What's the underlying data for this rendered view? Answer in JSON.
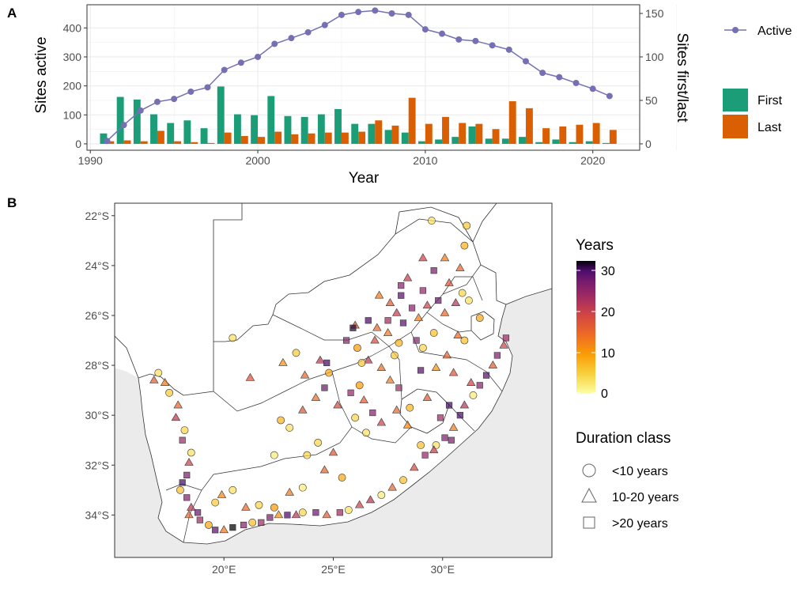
{
  "figure": {
    "panel_a_label": "A",
    "panel_b_label": "B"
  },
  "colors": {
    "active": "#7570B3",
    "first": "#1B9E77",
    "last": "#D95F02",
    "grid": "#EBEBEB",
    "border": "#333333",
    "land_fill": "#FFFFFF"
  },
  "chart_data": [
    {
      "type": "bar",
      "title": "",
      "xlabel": "Year",
      "ylabel": "Sites active",
      "ylabel_right": "Sites first/last",
      "xlim": [
        1989.8,
        2022.8
      ],
      "ylim": [
        -22,
        480
      ],
      "ylim_right": [
        -7.33,
        160
      ],
      "x_ticks": [
        1990,
        2000,
        2010,
        2020
      ],
      "x_tick_labels": [
        "1990",
        "2000",
        "2010",
        "2020"
      ],
      "y_ticks": [
        0,
        100,
        200,
        300,
        400
      ],
      "y_tick_labels": [
        "0",
        "100",
        "200",
        "300",
        "400"
      ],
      "y_ticks_right": [
        0,
        50,
        100,
        150
      ],
      "y_tick_labels_right": [
        "0",
        "50",
        "100",
        "150"
      ],
      "years": [
        1991,
        1992,
        1993,
        1994,
        1995,
        1996,
        1997,
        1998,
        1999,
        2000,
        2001,
        2002,
        2003,
        2004,
        2005,
        2006,
        2007,
        2008,
        2009,
        2010,
        2011,
        2012,
        2013,
        2014,
        2015,
        2016,
        2017,
        2018,
        2019,
        2020,
        2021
      ],
      "series": [
        {
          "name": "Active",
          "kind": "line",
          "axis": "left",
          "values": [
            10,
            65,
            115,
            145,
            155,
            180,
            195,
            255,
            280,
            300,
            345,
            365,
            385,
            410,
            445,
            455,
            460,
            450,
            445,
            395,
            380,
            360,
            355,
            340,
            325,
            285,
            245,
            230,
            210,
            190,
            165
          ]
        },
        {
          "name": "First",
          "kind": "bar",
          "axis": "right",
          "values": [
            12,
            54,
            51,
            34,
            24,
            27,
            18,
            66,
            34,
            33,
            55,
            32,
            31,
            34,
            40,
            23,
            23,
            16,
            13,
            3,
            5,
            8,
            20,
            6,
            6,
            8,
            2,
            5,
            2,
            3,
            1
          ]
        },
        {
          "name": "Last",
          "kind": "bar",
          "axis": "right",
          "values": [
            3,
            4,
            3,
            15,
            3,
            2,
            1,
            13,
            9,
            8,
            14,
            11,
            12,
            13,
            13,
            14,
            27,
            21,
            53,
            23,
            31,
            24,
            23,
            17,
            49,
            41,
            18,
            20,
            22,
            24,
            16
          ]
        }
      ],
      "legend": {
        "line_label": "Active",
        "bar_labels": [
          "First",
          "Last"
        ],
        "position": "right"
      }
    },
    {
      "type": "scatter",
      "title": "",
      "xlabel": "",
      "ylabel": "",
      "xlim": [
        15.0,
        35.0
      ],
      "ylim": [
        -35.7,
        -21.5
      ],
      "x_ticks": [
        20,
        25,
        30
      ],
      "x_tick_labels": [
        "20°E",
        "25°E",
        "30°E"
      ],
      "y_ticks": [
        -22,
        -24,
        -26,
        -28,
        -30,
        -32,
        -34
      ],
      "y_tick_labels": [
        "22°S",
        "24°S",
        "26°S",
        "28°S",
        "30°S",
        "32°S",
        "34°S"
      ],
      "color_legend": {
        "title": "Years",
        "min": 0,
        "max": 30,
        "tick_labels": [
          "0",
          "10",
          "20",
          "30"
        ]
      },
      "shape_legend": {
        "title": "Duration class",
        "labels": [
          "<10 years",
          "10-20 years",
          ">20 years"
        ]
      },
      "points": [
        [
          17.0,
          -28.3,
          3
        ],
        [
          17.3,
          -28.7,
          12
        ],
        [
          16.8,
          -28.6,
          15
        ],
        [
          17.5,
          -29.1,
          5
        ],
        [
          17.9,
          -29.6,
          14
        ],
        [
          17.8,
          -30.1,
          20
        ],
        [
          18.2,
          -30.6,
          4
        ],
        [
          18.1,
          -31.0,
          22
        ],
        [
          18.5,
          -31.5,
          3
        ],
        [
          18.4,
          -31.9,
          18
        ],
        [
          18.3,
          -32.4,
          25
        ],
        [
          18.1,
          -32.7,
          28
        ],
        [
          18.0,
          -33.0,
          6
        ],
        [
          18.3,
          -33.3,
          24
        ],
        [
          18.5,
          -33.7,
          20
        ],
        [
          18.8,
          -33.9,
          26
        ],
        [
          18.4,
          -34.0,
          14
        ],
        [
          18.9,
          -34.2,
          22
        ],
        [
          19.3,
          -34.4,
          8
        ],
        [
          19.6,
          -34.6,
          27
        ],
        [
          20.0,
          -34.6,
          12
        ],
        [
          20.4,
          -34.5,
          30
        ],
        [
          20.9,
          -34.4,
          24
        ],
        [
          21.3,
          -34.3,
          6
        ],
        [
          21.7,
          -34.3,
          22
        ],
        [
          22.1,
          -34.1,
          25
        ],
        [
          22.5,
          -34.0,
          10
        ],
        [
          22.9,
          -34.0,
          28
        ],
        [
          23.3,
          -34.0,
          20
        ],
        [
          23.6,
          -33.9,
          4
        ],
        [
          24.2,
          -33.9,
          26
        ],
        [
          24.7,
          -34.0,
          15
        ],
        [
          25.3,
          -33.9,
          22
        ],
        [
          25.7,
          -33.8,
          3
        ],
        [
          26.2,
          -33.6,
          18
        ],
        [
          26.7,
          -33.4,
          20
        ],
        [
          27.2,
          -33.2,
          2
        ],
        [
          27.7,
          -32.9,
          14
        ],
        [
          28.2,
          -32.6,
          6
        ],
        [
          28.7,
          -32.1,
          17
        ],
        [
          29.2,
          -31.6,
          23
        ],
        [
          29.7,
          -31.2,
          3
        ],
        [
          30.1,
          -30.9,
          25
        ],
        [
          30.5,
          -30.5,
          12
        ],
        [
          30.8,
          -30.0,
          28
        ],
        [
          31.0,
          -29.6,
          20
        ],
        [
          31.4,
          -29.2,
          2
        ],
        [
          31.7,
          -28.8,
          24
        ],
        [
          32.0,
          -28.4,
          27
        ],
        [
          32.3,
          -28.0,
          15
        ],
        [
          32.5,
          -27.6,
          25
        ],
        [
          32.8,
          -27.2,
          18
        ],
        [
          32.9,
          -26.9,
          22
        ],
        [
          19.6,
          -33.5,
          5
        ],
        [
          19.9,
          -33.2,
          11
        ],
        [
          20.4,
          -33.0,
          3
        ],
        [
          21.0,
          -33.7,
          14
        ],
        [
          21.6,
          -33.6,
          4
        ],
        [
          22.3,
          -33.7,
          9
        ],
        [
          23.0,
          -33.1,
          12
        ],
        [
          23.6,
          -32.9,
          2
        ],
        [
          24.6,
          -32.2,
          14
        ],
        [
          25.4,
          -32.5,
          8
        ],
        [
          25.0,
          -31.5,
          16
        ],
        [
          24.3,
          -31.1,
          4
        ],
        [
          23.0,
          -30.5,
          3
        ],
        [
          22.3,
          -31.6,
          2
        ],
        [
          23.6,
          -29.8,
          16
        ],
        [
          24.2,
          -29.3,
          13
        ],
        [
          24.6,
          -28.9,
          26
        ],
        [
          24.8,
          -28.3,
          8
        ],
        [
          24.4,
          -27.8,
          20
        ],
        [
          23.7,
          -28.4,
          14
        ],
        [
          23.3,
          -27.5,
          5
        ],
        [
          22.7,
          -27.9,
          10
        ],
        [
          21.2,
          -28.5,
          16
        ],
        [
          20.4,
          -26.9,
          3
        ],
        [
          22.6,
          -30.2,
          7
        ],
        [
          23.8,
          -31.6,
          4
        ],
        [
          25.8,
          -29.1,
          23
        ],
        [
          26.2,
          -28.8,
          9
        ],
        [
          26.4,
          -29.4,
          15
        ],
        [
          26.8,
          -29.9,
          24
        ],
        [
          26.5,
          -30.7,
          3
        ],
        [
          27.2,
          -30.3,
          18
        ],
        [
          27.6,
          -28.6,
          12
        ],
        [
          28.0,
          -28.9,
          22
        ],
        [
          28.5,
          -29.7,
          7
        ],
        [
          29.3,
          -29.3,
          15
        ],
        [
          29.0,
          -28.2,
          27
        ],
        [
          27.8,
          -27.6,
          5
        ],
        [
          27.2,
          -28.1,
          13
        ],
        [
          26.6,
          -27.8,
          20
        ],
        [
          26.1,
          -27.3,
          9
        ],
        [
          25.6,
          -27.0,
          24
        ],
        [
          26.0,
          -26.4,
          16
        ],
        [
          26.6,
          -26.2,
          28
        ],
        [
          27.0,
          -26.5,
          14
        ],
        [
          27.5,
          -26.2,
          22
        ],
        [
          27.9,
          -25.9,
          19
        ],
        [
          28.2,
          -26.3,
          27
        ],
        [
          28.6,
          -25.7,
          24
        ],
        [
          28.9,
          -26.1,
          12
        ],
        [
          29.3,
          -25.6,
          18
        ],
        [
          29.8,
          -25.4,
          26
        ],
        [
          30.1,
          -25.9,
          14
        ],
        [
          30.6,
          -25.5,
          20
        ],
        [
          30.9,
          -25.1,
          4
        ],
        [
          30.3,
          -24.7,
          16
        ],
        [
          29.6,
          -24.2,
          25
        ],
        [
          29.1,
          -23.7,
          18
        ],
        [
          29.5,
          -22.2,
          3
        ],
        [
          31.1,
          -22.4,
          5
        ],
        [
          30.8,
          -24.1,
          14
        ],
        [
          31.2,
          -25.4,
          3
        ],
        [
          31.7,
          -26.1,
          8
        ],
        [
          31.0,
          -27.0,
          6
        ],
        [
          30.2,
          -27.6,
          14
        ],
        [
          29.7,
          -28.1,
          10
        ],
        [
          29.1,
          -27.3,
          4
        ],
        [
          30.5,
          -28.3,
          16
        ],
        [
          29.9,
          -30.1,
          22
        ],
        [
          30.3,
          -29.6,
          28
        ],
        [
          29.6,
          -31.4,
          19
        ],
        [
          30.4,
          -31.0,
          25
        ],
        [
          31.3,
          -28.7,
          18
        ],
        [
          27.5,
          -26.7,
          12
        ],
        [
          28.0,
          -27.1,
          7
        ],
        [
          26.9,
          -27.0,
          17
        ],
        [
          28.8,
          -27.0,
          24
        ],
        [
          29.6,
          -26.7,
          6
        ],
        [
          30.7,
          -26.8,
          14
        ],
        [
          28.4,
          -24.5,
          19
        ],
        [
          27.1,
          -25.2,
          12
        ],
        [
          27.6,
          -25.5,
          15
        ],
        [
          28.1,
          -24.8,
          24
        ],
        [
          24.7,
          -27.9,
          28
        ],
        [
          25.2,
          -29.6,
          17
        ],
        [
          26.0,
          -30.1,
          4
        ],
        [
          25.9,
          -26.5,
          29
        ],
        [
          28.1,
          -25.2,
          27
        ],
        [
          29.1,
          -25.0,
          23
        ],
        [
          26.3,
          -27.9,
          5
        ],
        [
          27.9,
          -29.8,
          14
        ],
        [
          28.4,
          -30.4,
          11
        ],
        [
          29.0,
          -31.2,
          6
        ],
        [
          30.1,
          -23.7,
          12
        ],
        [
          31.0,
          -23.2,
          7
        ]
      ]
    }
  ]
}
